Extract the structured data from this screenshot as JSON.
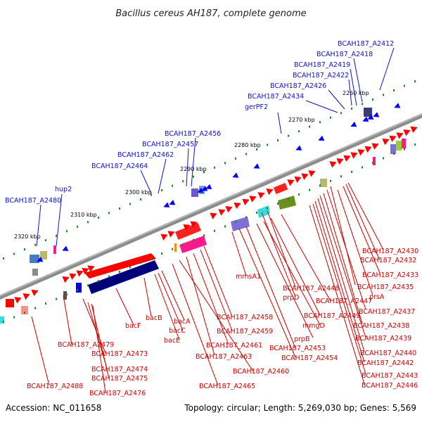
{
  "title": "Bacillus cereus AH187, complete genome",
  "footer": {
    "accession": "Accession: NC_011658",
    "summary": "Topology: circular; Length: 5,269,030 bp; Genes: 5,569"
  },
  "colors": {
    "backbone": "#8a8a8a",
    "forward_gene": "#ff0000",
    "reverse_gene": "#0000ff",
    "tick": "#1a8a1a",
    "blue_label": "#1010cc",
    "red_label": "#cc0000"
  },
  "scale_labels": [
    {
      "text": "2260 kbp"
    },
    {
      "text": "2270 kbp"
    },
    {
      "text": "2280 kbp"
    },
    {
      "text": "2290 kbp"
    },
    {
      "text": "2300 kbp"
    },
    {
      "text": "2310 kbp"
    },
    {
      "text": "2320 kbp"
    }
  ],
  "blue_labels": [
    "BCAH187_A2412",
    "BCAH187_A2418",
    "BCAH187_A2419",
    "BCAH187_A2422",
    "BCAH187_A2426",
    "BCAH187_A2434",
    "gerPF2",
    "BCAH187_A2456",
    "BCAH187_A2457",
    "BCAH187_A2462",
    "BCAH187_A2464",
    "hup2",
    "BCAH187_A2480"
  ],
  "red_labels": [
    "BCAH187_A2430",
    "BCAH187_A2432",
    "BCAH187_A2433",
    "mmsA1",
    "BCAH187_A2435",
    "BCAH187_A2448",
    "prsA",
    "prpD",
    "BCAH187_A2447",
    "BCAH187_A2437",
    "BCAH187_A2449",
    "mmgD",
    "BCAH187_A2438",
    "bacA",
    "bacB",
    "BCAH187_A2458",
    "bacF",
    "bacC",
    "BCAH187_A2459",
    "BCAH187_A2439",
    "prpB",
    "bacE",
    "BCAH187_A2461",
    "BCAH187_A2453",
    "BCAH187_A2440",
    "BCAH187_A2479",
    "BCAH187_A2473",
    "BCAH187_A2463",
    "BCAH187_A2454",
    "BCAH187_A2442",
    "BCAH187_A2474",
    "BCAH187_A2460",
    "BCAH187_A2443",
    "BCAH187_A2475",
    "BCAH187_A2446",
    "BCAH187_A2488",
    "BCAH187_A2465",
    "BCAH187_A2476"
  ]
}
